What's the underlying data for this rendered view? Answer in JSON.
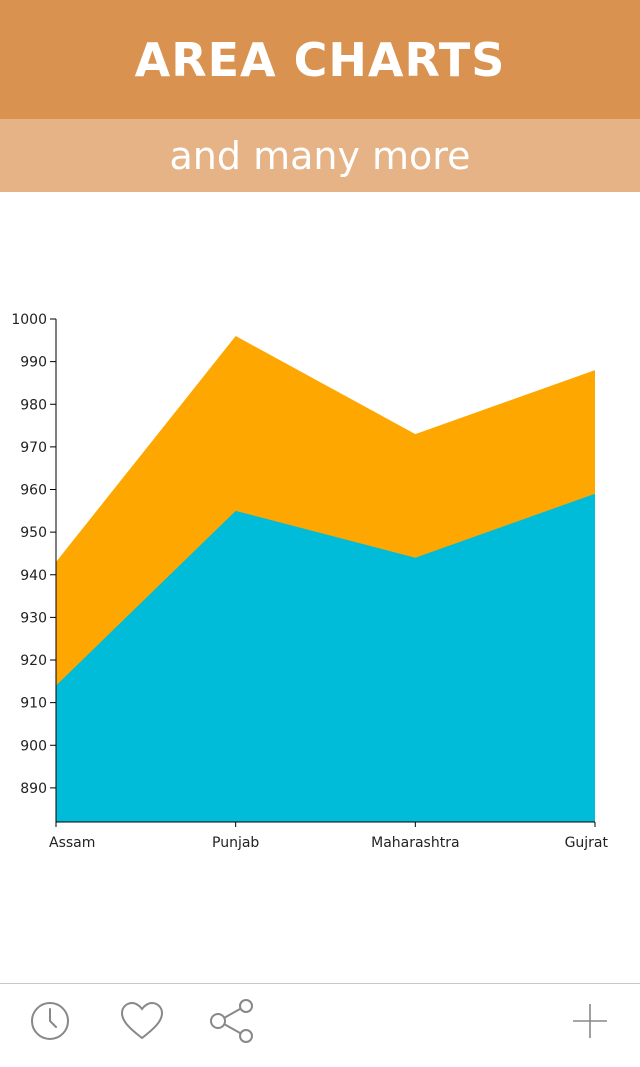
{
  "header": {
    "title": "AREA CHARTS",
    "subtitle": "and many more"
  },
  "colors": {
    "header_bg": "#d9924f",
    "subheader_bg": "#e6b386",
    "series_bottom": "#00bcd9",
    "series_top": "#fea700",
    "axis": "#000000",
    "icon": "#888888"
  },
  "chart_data": {
    "type": "area",
    "stacked": false,
    "categories": [
      "Assam",
      "Punjab",
      "Maharashtra",
      "Gujrat"
    ],
    "series": [
      {
        "values": [
          943,
          996,
          973,
          988
        ]
      },
      {
        "values": [
          914,
          955,
          944,
          959
        ]
      }
    ],
    "yticks": [
      890,
      900,
      910,
      920,
      930,
      940,
      950,
      960,
      970,
      980,
      990,
      1000
    ],
    "ylim": [
      882,
      1000
    ],
    "grid": false,
    "legend": "none"
  },
  "footer": {
    "icons": [
      "clock-icon",
      "heart-icon",
      "share-icon",
      "plus-icon"
    ]
  }
}
